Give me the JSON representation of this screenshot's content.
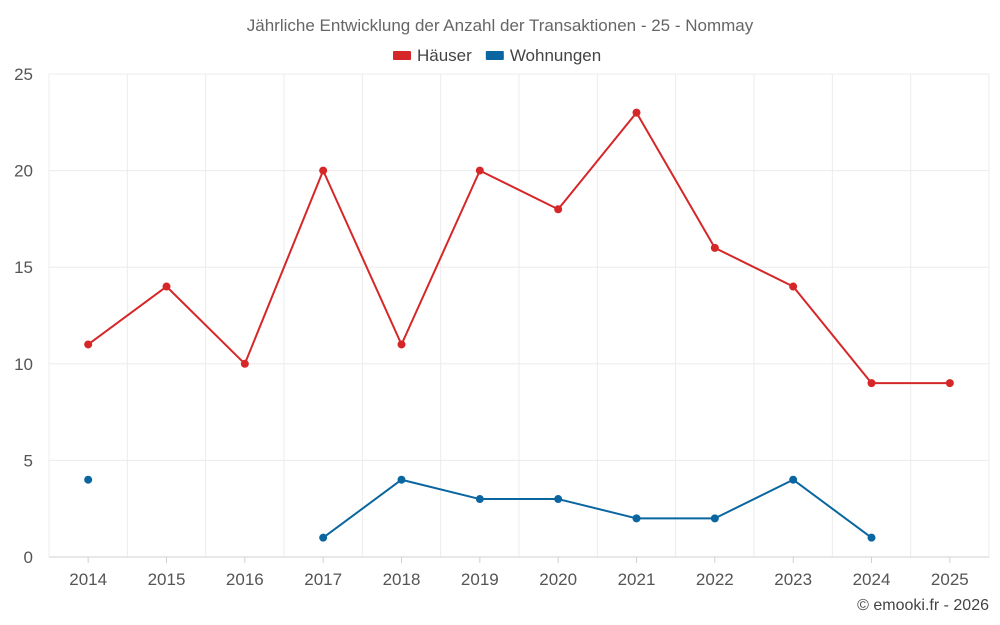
{
  "chart_data": {
    "type": "line",
    "title": "Jährliche Entwicklung der Anzahl der Transaktionen - 25 - Nommay",
    "xlabel": "",
    "ylabel": "",
    "categories": [
      "2014",
      "2015",
      "2016",
      "2017",
      "2018",
      "2019",
      "2020",
      "2021",
      "2022",
      "2023",
      "2024",
      "2025"
    ],
    "ylim": [
      0,
      25
    ],
    "yticks": [
      0,
      5,
      10,
      15,
      20,
      25
    ],
    "grid": true,
    "legend_position": "top-center",
    "series": [
      {
        "name": "Häuser",
        "color": "#d62728",
        "values": [
          11,
          14,
          10,
          20,
          11,
          20,
          18,
          23,
          16,
          14,
          9,
          9
        ]
      },
      {
        "name": "Wohnungen",
        "color": "#0a66a0",
        "values": [
          4,
          null,
          null,
          1,
          4,
          3,
          3,
          2,
          2,
          4,
          1,
          null
        ]
      }
    ]
  },
  "footer": {
    "credit": "© emooki.fr - 2026"
  }
}
